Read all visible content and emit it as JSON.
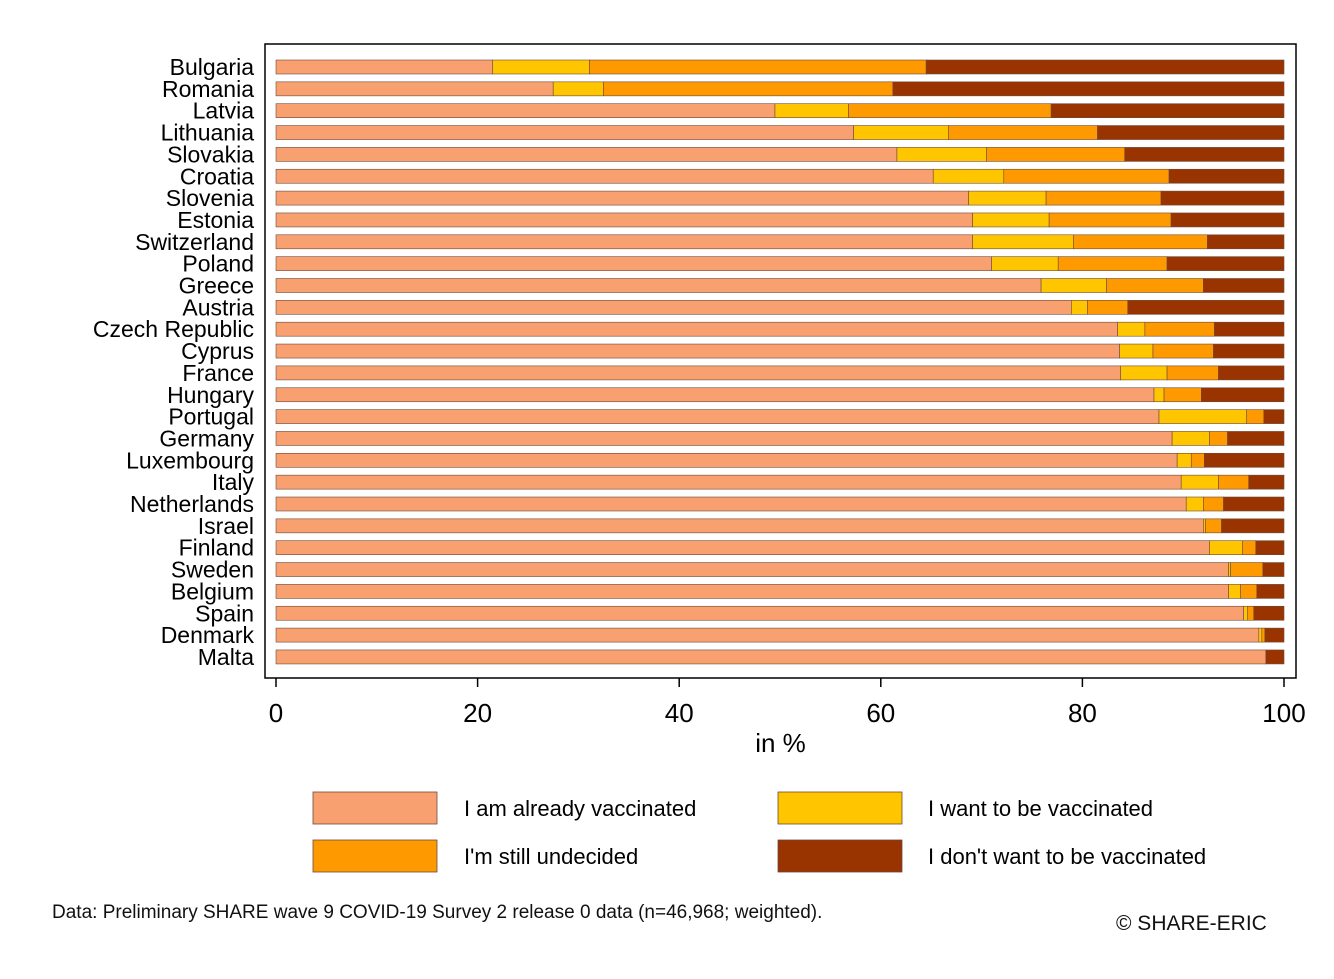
{
  "chart_data": {
    "type": "bar",
    "orientation": "horizontal",
    "stacked": true,
    "xlabel": "in %",
    "xlim": [
      0,
      100
    ],
    "xticks": [
      "0",
      "20",
      "40",
      "60",
      "80",
      "100"
    ],
    "grid": false,
    "legend_position": "bottom",
    "categories": [
      "Bulgaria",
      "Romania",
      "Latvia",
      "Lithuania",
      "Slovakia",
      "Croatia",
      "Slovenia",
      "Estonia",
      "Switzerland",
      "Poland",
      "Greece",
      "Austria",
      "Czech Republic",
      "Cyprus",
      "France",
      "Hungary",
      "Portugal",
      "Germany",
      "Luxembourg",
      "Italy",
      "Netherlands",
      "Israel",
      "Finland",
      "Sweden",
      "Belgium",
      "Spain",
      "Denmark",
      "Malta"
    ],
    "series": [
      {
        "name": "I am already vaccinated",
        "color": "#F9A070",
        "values": [
          21.5,
          27.5,
          49.5,
          57.3,
          61.6,
          65.2,
          68.7,
          69.1,
          69.1,
          71.0,
          75.9,
          78.9,
          83.5,
          83.7,
          83.8,
          87.1,
          87.6,
          88.9,
          89.4,
          89.8,
          90.3,
          92.0,
          92.6,
          94.5,
          94.5,
          96.0,
          97.5,
          98.2
        ]
      },
      {
        "name": "I want to be vaccinated",
        "color": "#FFC600",
        "values": [
          9.6,
          5.0,
          7.3,
          9.4,
          8.9,
          7.0,
          7.7,
          7.6,
          10.0,
          6.6,
          6.5,
          1.6,
          2.7,
          3.3,
          4.6,
          1.0,
          8.7,
          3.7,
          1.4,
          3.7,
          1.7,
          0.2,
          3.3,
          0.2,
          1.2,
          0.4,
          0.3,
          0.0
        ]
      },
      {
        "name": "I'm still undecided",
        "color": "#FF9900",
        "values": [
          33.4,
          28.7,
          20.1,
          14.8,
          13.7,
          16.4,
          11.4,
          12.1,
          13.3,
          10.8,
          9.6,
          4.0,
          6.9,
          6.0,
          5.1,
          3.7,
          1.7,
          1.8,
          1.3,
          3.0,
          2.0,
          1.6,
          1.3,
          3.2,
          1.6,
          0.6,
          0.3,
          0.0
        ]
      },
      {
        "name": "I don't want to be vaccinated",
        "color": "#993300",
        "values": [
          35.5,
          38.8,
          23.1,
          18.5,
          15.8,
          11.4,
          12.2,
          11.2,
          7.6,
          11.6,
          8.0,
          15.5,
          6.9,
          7.0,
          6.5,
          8.2,
          2.0,
          5.6,
          7.9,
          3.5,
          6.0,
          6.2,
          2.8,
          2.1,
          2.7,
          3.0,
          1.9,
          1.8
        ]
      }
    ],
    "legend": [
      "I am already vaccinated",
      "I want to be vaccinated",
      "I'm still undecided",
      "I don't want to be vaccinated"
    ]
  },
  "footnote": "Data: Preliminary SHARE wave 9 COVID-19 Survey 2 release 0 data (n=46,968; weighted).",
  "copyright": "© SHARE-ERIC"
}
